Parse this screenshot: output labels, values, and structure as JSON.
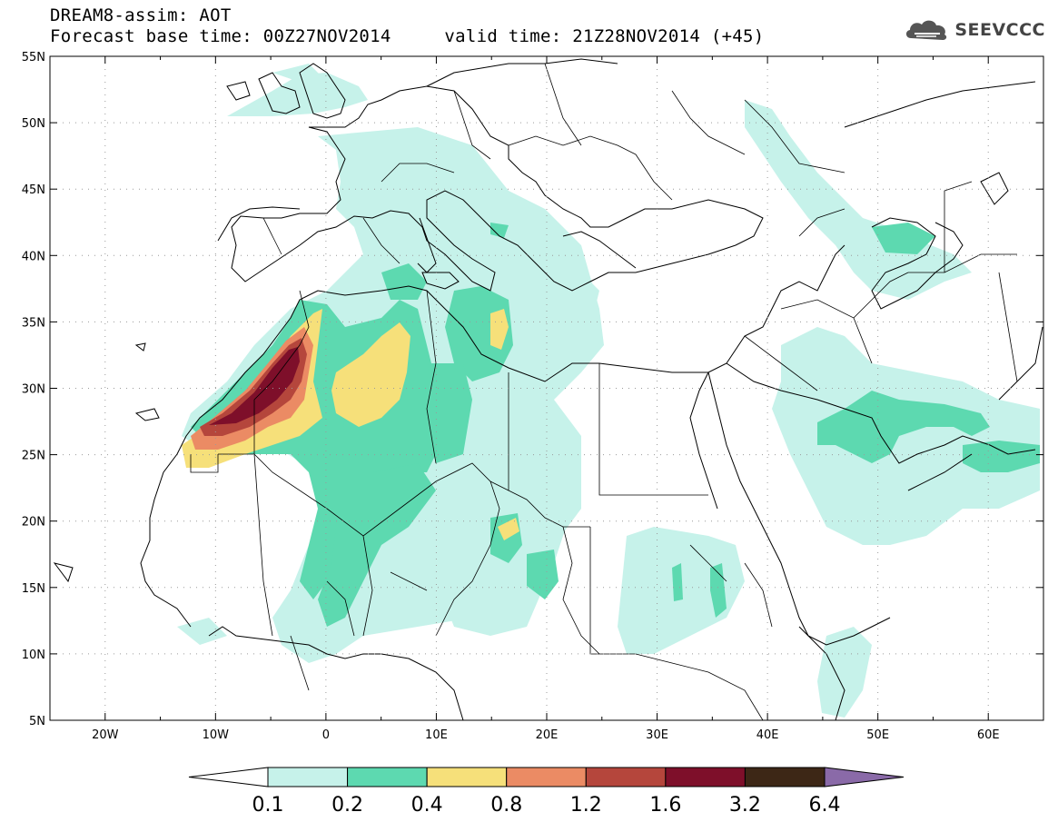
{
  "header": {
    "line1": "DREAM8-assim: AOT",
    "base_label": "Forecast base time: 00Z27NOV2014",
    "valid_label": "valid time: 21Z28NOV2014 (+45)"
  },
  "logo": {
    "text": "SEEVCCC",
    "icon": "cloud-logo-icon"
  },
  "map": {
    "lat_labels": [
      "55N",
      "50N",
      "45N",
      "40N",
      "35N",
      "30N",
      "25N",
      "20N",
      "15N",
      "10N",
      "5N"
    ],
    "lon_labels": [
      "20W",
      "10W",
      "0",
      "10E",
      "20E",
      "30E",
      "40E",
      "50E",
      "60E"
    ]
  },
  "colorbar": {
    "levels": [
      "0.1",
      "0.2",
      "0.4",
      "0.8",
      "1.2",
      "1.6",
      "3.2",
      "6.4"
    ],
    "colors": [
      "#ffffff",
      "#c6f2ea",
      "#5dd9b0",
      "#f6e07a",
      "#eb8b64",
      "#b5463c",
      "#7e0f2a",
      "#3d2716",
      "#8a6aa8"
    ]
  }
}
